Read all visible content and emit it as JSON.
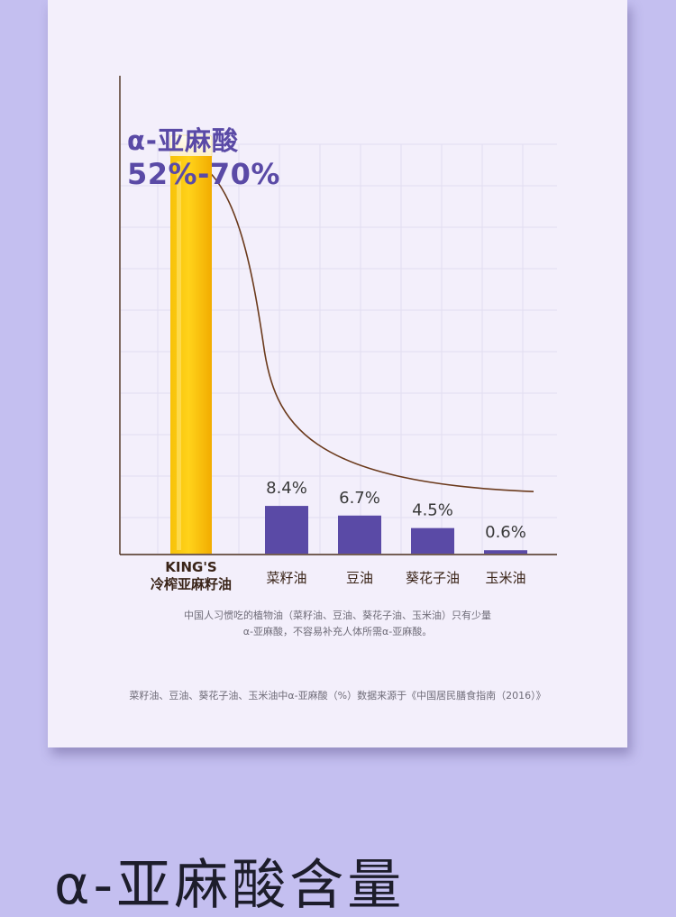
{
  "highlight": {
    "name": "α-亚麻酸",
    "range": "52%-70%"
  },
  "chart_data": {
    "type": "bar",
    "categories": [
      "KING'S\n冷榨亚麻籽油",
      "菜籽油",
      "豆油",
      "葵花子油",
      "玉米油"
    ],
    "values": [
      70,
      8.4,
      6.7,
      4.5,
      0.6
    ],
    "data_labels": [
      "",
      "8.4%",
      "6.7%",
      "4.5%",
      "0.6%"
    ],
    "highlight_range": [
      52,
      70
    ],
    "ylim": [
      0,
      80
    ],
    "grid": true,
    "trend_curve": true,
    "colors": {
      "highlight_bar": "#f5b800",
      "bar": "#5a4aa6",
      "curve": "#6b3a1c",
      "axis": "#4a2e1c",
      "category_label": "#3a2418",
      "data_label": "#3a3a3a"
    }
  },
  "notes": {
    "line1": "中国人习惯吃的植物油（菜籽油、豆油、葵花子油、玉米油）只有少量",
    "line2": "α-亚麻酸，不容易补充人体所需α-亚麻酸。",
    "source": "菜籽油、豆油、葵花子油、玉米油中α-亚麻酸（%）数据来源于《中国居民膳食指南（2016）》"
  },
  "headline": "α-亚麻酸含量"
}
